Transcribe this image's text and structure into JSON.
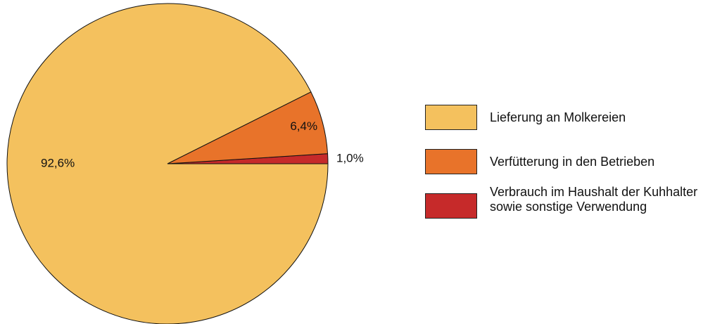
{
  "chart_data": {
    "type": "pie",
    "series": [
      {
        "name": "Lieferung an Molkereien",
        "color": "#f4c15e",
        "values": [
          92.6
        ],
        "value_labels": [
          "92,6%"
        ]
      },
      {
        "name": "Verfütterung in den Betrieben",
        "color": "#e8732a",
        "values": [
          6.4
        ],
        "value_labels": [
          "6,4%"
        ]
      },
      {
        "name": "Verbrauch im Haushalt der Kuhhalter\nsowie sonstige Verwendung",
        "color": "#c62a2a",
        "values": [
          1.0
        ],
        "value_labels": [
          "1,0%"
        ]
      }
    ]
  }
}
